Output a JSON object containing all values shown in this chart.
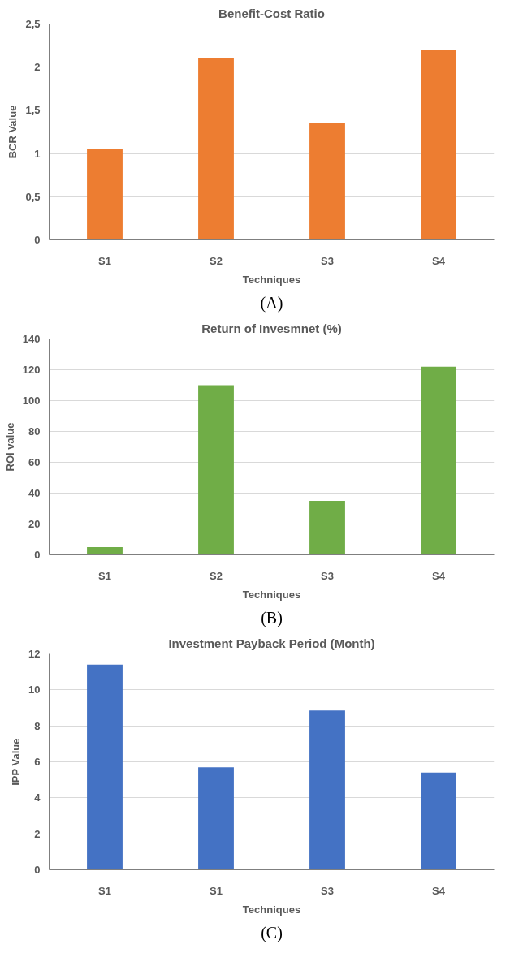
{
  "chart_data": [
    {
      "type": "bar",
      "title": "Benefit-Cost Ratio",
      "xlabel": "Techniques",
      "ylabel": "BCR Value",
      "categories": [
        "S1",
        "S2",
        "S3",
        "S4"
      ],
      "values": [
        1.05,
        2.1,
        1.35,
        2.2
      ],
      "color": "#ed7d31",
      "ylim": [
        0,
        2.5
      ],
      "yticks": [
        0,
        {
          "value": 0.5,
          "label": "0,5"
        },
        1,
        {
          "value": 1.5,
          "label": "1,5"
        },
        2,
        {
          "value": 2.5,
          "label": "2,5"
        }
      ],
      "grid": "y",
      "annotations": [
        "(A)"
      ]
    },
    {
      "type": "bar",
      "title": "Return of Invesmnet (%)",
      "xlabel": "Techniques",
      "ylabel": "ROI value",
      "categories": [
        "S1",
        "S2",
        "S3",
        "S4"
      ],
      "values": [
        5,
        110,
        35,
        122
      ],
      "color": "#70ad47",
      "ylim": [
        0,
        140
      ],
      "yticks": [
        0,
        20,
        40,
        60,
        80,
        100,
        120,
        140
      ],
      "grid": "y",
      "annotations": [
        "(B)"
      ]
    },
    {
      "type": "bar",
      "title": "Investment Payback Period (Month)",
      "xlabel": "Techniques",
      "ylabel": "IPP Value",
      "categories": [
        "S1",
        "S1",
        "S3",
        "S4"
      ],
      "values": [
        11.4,
        5.7,
        8.85,
        5.4
      ],
      "color": "#4472c4",
      "ylim": [
        0,
        12
      ],
      "yticks": [
        0,
        2,
        4,
        6,
        8,
        10,
        12
      ],
      "grid": "y",
      "annotations": [
        "(C)"
      ]
    }
  ]
}
